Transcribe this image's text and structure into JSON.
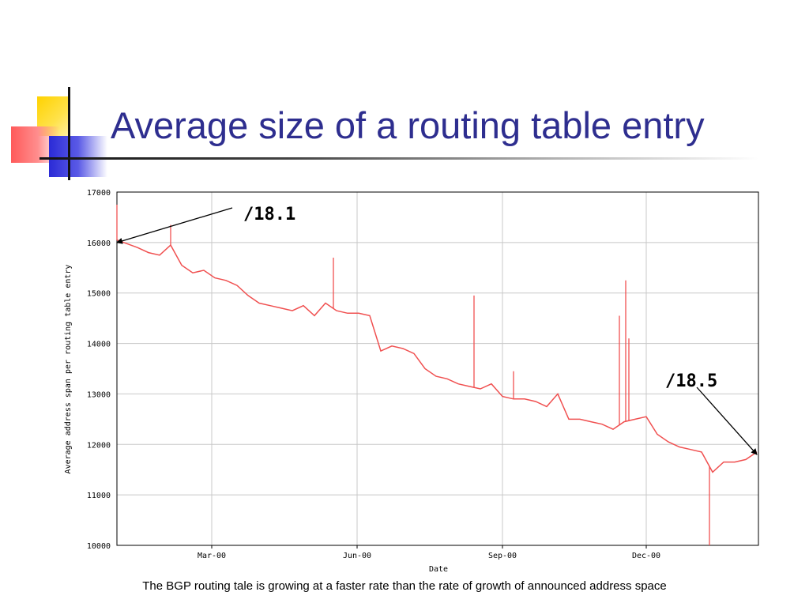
{
  "slide": {
    "title": "Average size of a routing table entry",
    "caption": "The BGP routing tale is growing at a faster rate than the rate of growth of announced address space",
    "accent_colors": {
      "title": "#2e2e8f",
      "yellow": "#ffd200",
      "red": "#ff5a5a",
      "blue": "#2b2bd6"
    }
  },
  "chart_data": {
    "type": "line",
    "xlabel": "Date",
    "ylabel": "Average address span per routing table entry",
    "ylim": [
      10000,
      17000
    ],
    "yticks": [
      10000,
      11000,
      12000,
      13000,
      14000,
      15000,
      16000,
      17000
    ],
    "xlim": [
      "2000-01-01",
      "2001-02-10"
    ],
    "xticks": [
      {
        "date": "2000-03-01",
        "label": "Mar-00"
      },
      {
        "date": "2000-06-01",
        "label": "Jun-00"
      },
      {
        "date": "2000-09-01",
        "label": "Sep-00"
      },
      {
        "date": "2000-12-01",
        "label": "Dec-00"
      }
    ],
    "grid": true,
    "line_color": "#f05050",
    "series": [
      {
        "x": [
          "2000-01-01",
          "2000-01-07",
          "2000-01-14",
          "2000-01-21",
          "2000-01-28",
          "2000-02-04",
          "2000-02-11",
          "2000-02-18",
          "2000-02-25",
          "2000-03-03",
          "2000-03-10",
          "2000-03-17",
          "2000-03-24",
          "2000-03-31",
          "2000-04-07",
          "2000-04-14",
          "2000-04-21",
          "2000-04-28",
          "2000-05-05",
          "2000-05-12",
          "2000-05-19",
          "2000-05-26",
          "2000-06-02",
          "2000-06-09",
          "2000-06-16",
          "2000-06-23",
          "2000-06-30",
          "2000-07-07",
          "2000-07-14",
          "2000-07-21",
          "2000-07-28",
          "2000-08-04",
          "2000-08-11",
          "2000-08-18",
          "2000-08-25",
          "2000-09-01",
          "2000-09-08",
          "2000-09-15",
          "2000-09-22",
          "2000-09-29",
          "2000-10-06",
          "2000-10-13",
          "2000-10-20",
          "2000-10-27",
          "2000-11-03",
          "2000-11-10",
          "2000-11-17",
          "2000-11-24",
          "2000-12-01",
          "2000-12-08",
          "2000-12-15",
          "2000-12-22",
          "2000-12-29",
          "2001-01-05",
          "2001-01-12",
          "2001-01-19",
          "2001-01-26",
          "2001-02-02",
          "2001-02-09"
        ],
        "y": [
          16050,
          15980,
          15900,
          15800,
          15750,
          15950,
          15550,
          15400,
          15450,
          15300,
          15250,
          15150,
          14950,
          14800,
          14750,
          14700,
          14650,
          14750,
          14550,
          14800,
          14650,
          14600,
          14600,
          14550,
          13850,
          13950,
          13900,
          13800,
          13500,
          13350,
          13300,
          13200,
          13150,
          13100,
          13200,
          12950,
          12900,
          12900,
          12850,
          12750,
          13000,
          12500,
          12500,
          12450,
          12400,
          12300,
          12450,
          12500,
          12550,
          12200,
          12050,
          11950,
          11900,
          11850,
          11450,
          11650,
          11650,
          11700,
          11850
        ]
      }
    ],
    "spikes": [
      {
        "x": "2000-01-01",
        "y": 16750
      },
      {
        "x": "2000-02-04",
        "y": 16350
      },
      {
        "x": "2000-05-17",
        "y": 15700
      },
      {
        "x": "2000-08-14",
        "y": 14950
      },
      {
        "x": "2000-09-08",
        "y": 13450
      },
      {
        "x": "2000-11-14",
        "y": 14550
      },
      {
        "x": "2000-11-18",
        "y": 15250
      },
      {
        "x": "2000-11-20",
        "y": 14100
      },
      {
        "x": "2001-01-10",
        "y": 10000
      }
    ],
    "annotations": [
      {
        "text": "/18.1",
        "x": "2000-01-01",
        "y": 16000
      },
      {
        "text": "/18.5",
        "x": "2001-02-09",
        "y": 11800
      }
    ]
  }
}
